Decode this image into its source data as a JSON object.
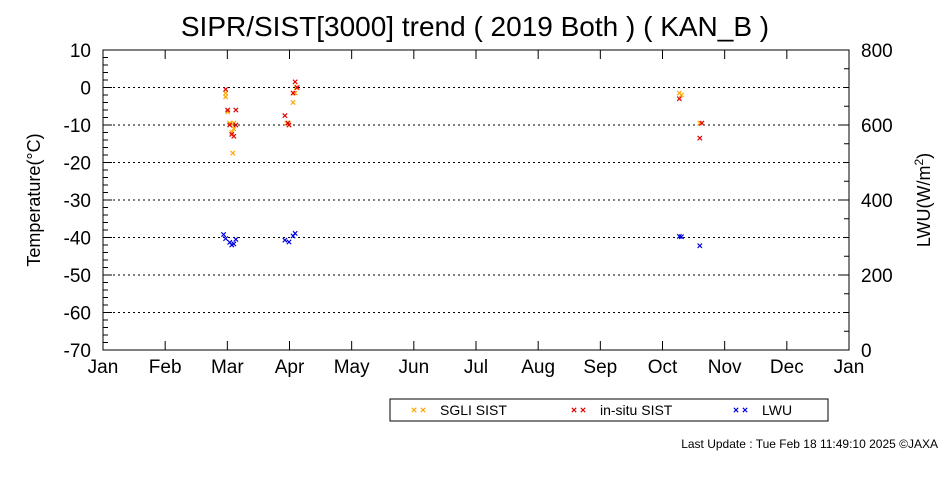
{
  "chart_data": {
    "type": "scatter",
    "title": "SIPR/SIST[3000] trend ( 2019 Both ) ( KAN_B )",
    "ylabel": "Temperature(°C)",
    "y2label_base": "LWU(W/m",
    "y2label_sup": "2",
    "y2label_tail": ")",
    "ylim": [
      -70,
      10
    ],
    "y2lim": [
      0,
      800
    ],
    "yticks": [
      10,
      0,
      -10,
      -20,
      -30,
      -40,
      -50,
      -60,
      -70
    ],
    "y2ticks": [
      800,
      600,
      400,
      200,
      0
    ],
    "xticks": [
      "Jan",
      "Feb",
      "Mar",
      "Apr",
      "May",
      "Jun",
      "Jul",
      "Aug",
      "Sep",
      "Oct",
      "Nov",
      "Dec",
      "Jan"
    ],
    "grid": "dotted-horizontal",
    "legend_position": "bottom-right",
    "series": [
      {
        "name": "SGLI SIST",
        "color": "#ffa500",
        "axis": "left",
        "points": [
          [
            60,
            -1.5
          ],
          [
            60,
            -2.5
          ],
          [
            61,
            -6.5
          ],
          [
            62,
            -9.5
          ],
          [
            63,
            -12
          ],
          [
            63.5,
            -17.5
          ],
          [
            64,
            -9.5
          ],
          [
            64,
            -11
          ],
          [
            90,
            -9.5
          ],
          [
            90.5,
            -9.5
          ],
          [
            91,
            -10
          ],
          [
            93,
            -4
          ],
          [
            94,
            -1.5
          ],
          [
            94.5,
            0
          ],
          [
            282,
            -1.5
          ],
          [
            283,
            -2
          ],
          [
            292,
            -9.5
          ]
        ]
      },
      {
        "name": "in-situ SIST",
        "color": "#e00000",
        "axis": "left",
        "points": [
          [
            60,
            -0.5
          ],
          [
            61,
            -6
          ],
          [
            62,
            -10
          ],
          [
            63,
            -12.5
          ],
          [
            64,
            -13
          ],
          [
            65,
            -6
          ],
          [
            65,
            -10
          ],
          [
            89,
            -7.5
          ],
          [
            90.5,
            -9.5
          ],
          [
            91,
            -10
          ],
          [
            93,
            -1.5
          ],
          [
            94,
            1.5
          ],
          [
            95,
            0
          ],
          [
            282,
            -3
          ],
          [
            292,
            -13.5
          ],
          [
            293,
            -9.5
          ]
        ]
      },
      {
        "name": "LWU",
        "color": "#0000e0",
        "axis": "right",
        "points": [
          [
            59,
            308
          ],
          [
            60,
            297
          ],
          [
            62,
            287
          ],
          [
            63,
            280
          ],
          [
            64,
            283
          ],
          [
            65,
            295
          ],
          [
            89,
            293
          ],
          [
            91,
            288
          ],
          [
            93,
            304
          ],
          [
            94,
            311
          ],
          [
            282,
            303
          ],
          [
            283,
            302
          ],
          [
            292,
            278
          ]
        ]
      }
    ],
    "footer": "Last Update : Tue Feb 18 11:49:10 2025 ©JAXA"
  }
}
